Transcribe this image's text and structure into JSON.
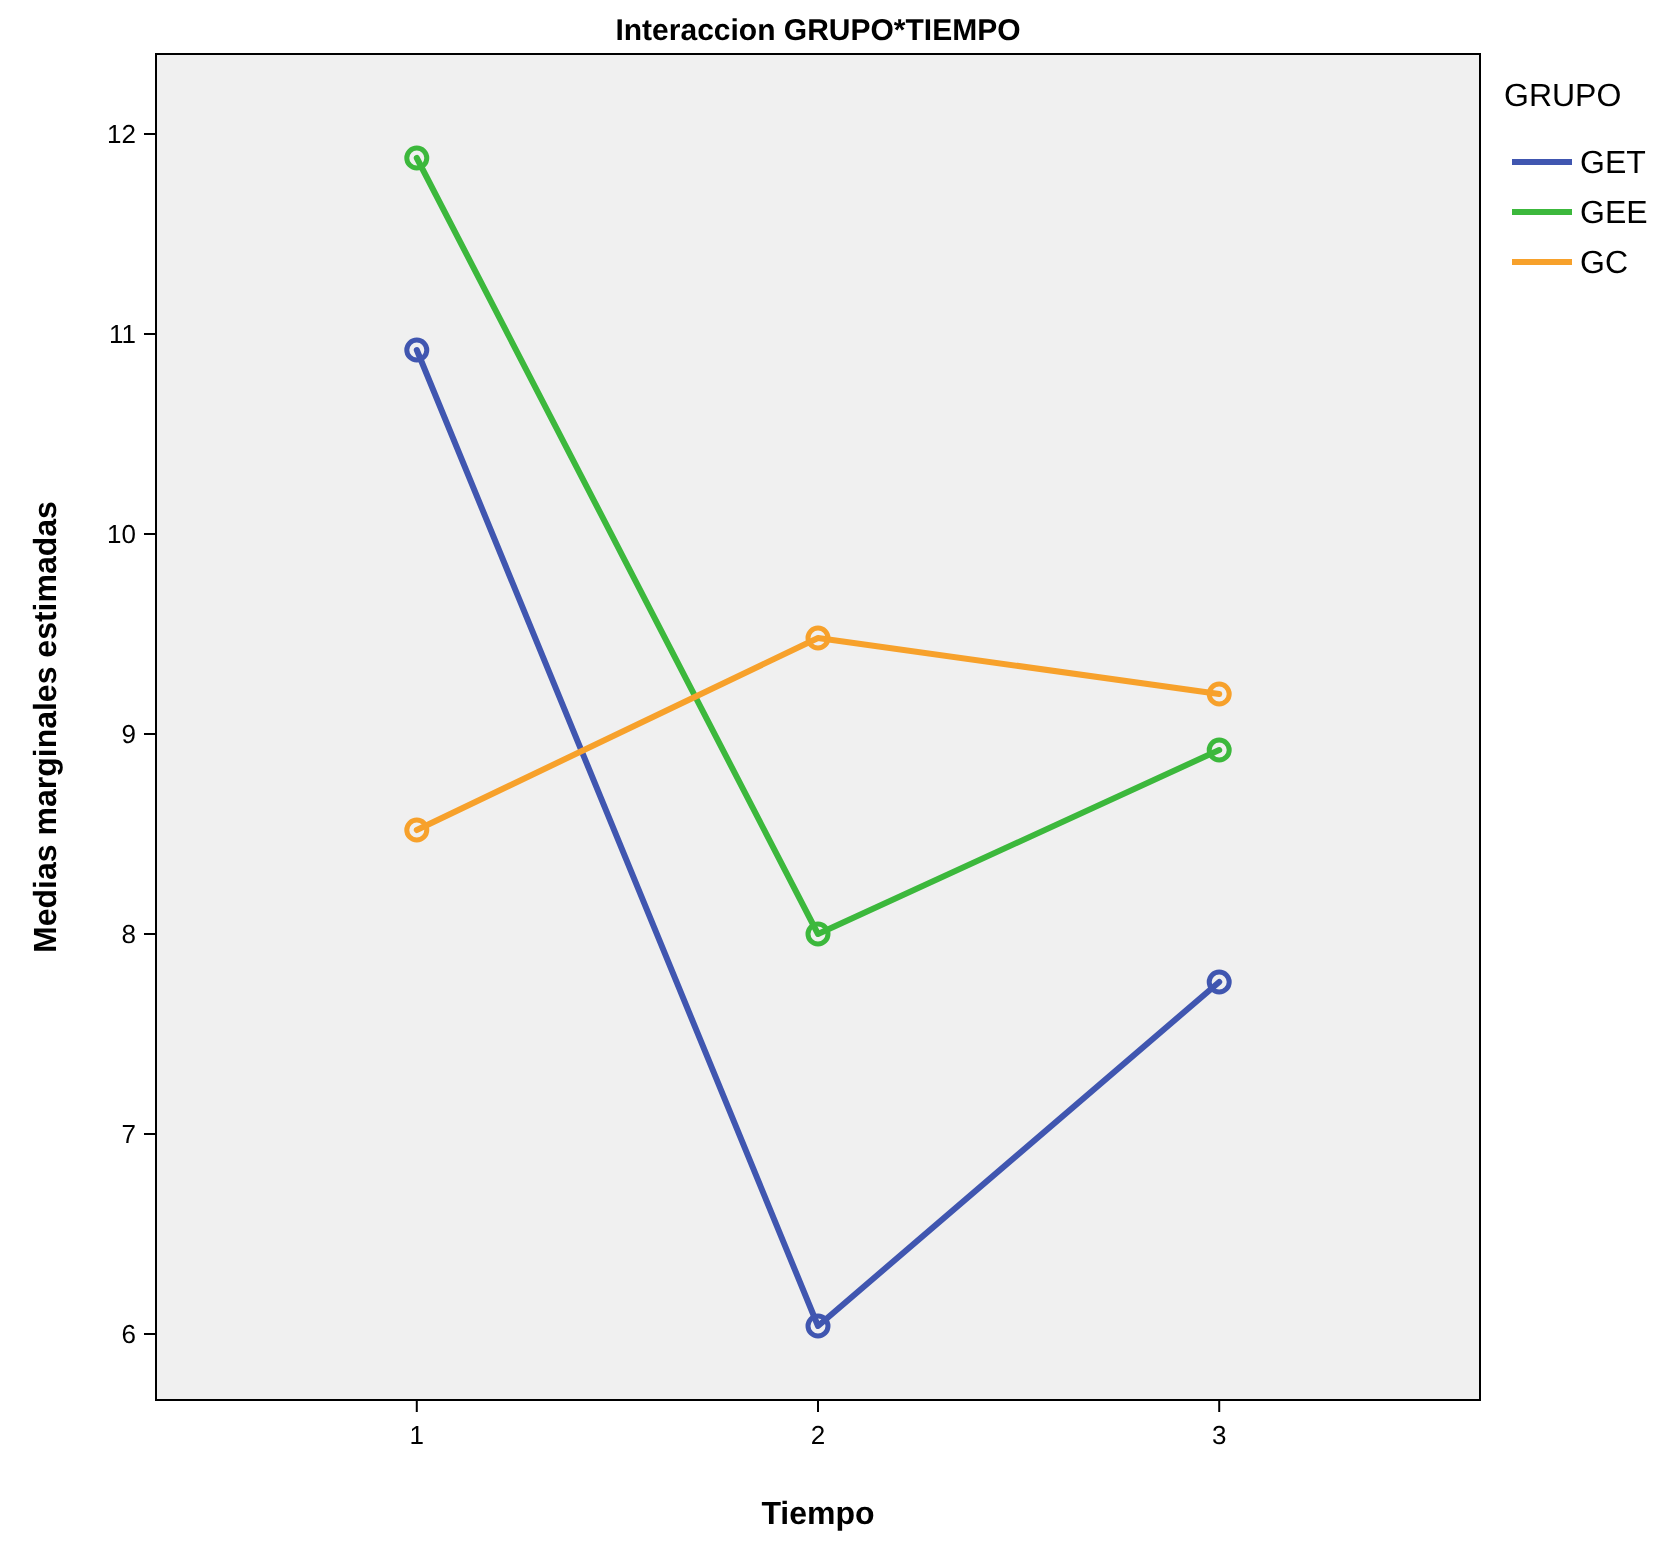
{
  "chart_data": {
    "type": "line",
    "title": "Interaccion GRUPO*TIEMPO",
    "xlabel": "Tiempo",
    "ylabel": "Medias marginales estimadas",
    "legend_title": "GRUPO",
    "legend": "right",
    "marker": "circle",
    "grid": false,
    "categories": [
      "1",
      "2",
      "3"
    ],
    "ylim": [
      5.67,
      12.4
    ],
    "yticks": [
      6,
      7,
      8,
      9,
      10,
      11,
      12
    ],
    "series": [
      {
        "name": "GET",
        "color": "#4056b0",
        "values": [
          10.92,
          6.04,
          7.76
        ]
      },
      {
        "name": "GEE",
        "color": "#3cb83c",
        "values": [
          11.88,
          8.0,
          8.92
        ]
      },
      {
        "name": "GC",
        "color": "#f7a12b",
        "values": [
          8.52,
          9.48,
          9.2
        ]
      }
    ]
  }
}
